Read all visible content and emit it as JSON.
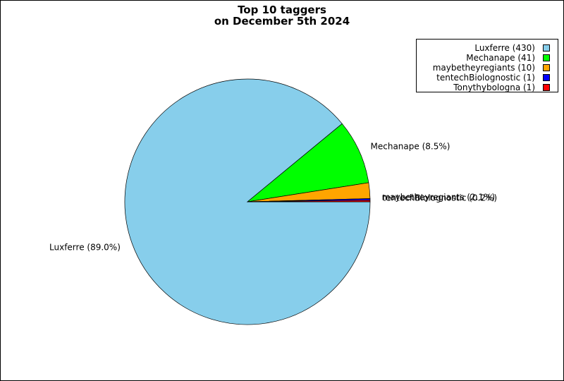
{
  "chart_data": {
    "type": "pie",
    "title": "Top 10 taggers",
    "subtitle": "on December 5th 2024",
    "slices": [
      {
        "name": "Luxferre",
        "value": 430,
        "percent": 89.0,
        "color": "#87CEEB",
        "legend_label": "Luxferre (430)",
        "slice_label": "Luxferre (89.0%)"
      },
      {
        "name": "Mechanape",
        "value": 41,
        "percent": 8.5,
        "color": "#00FF00",
        "legend_label": "Mechanape (41)",
        "slice_label": "Mechanape (8.5%)"
      },
      {
        "name": "maybetheyregiants",
        "value": 10,
        "percent": 2.1,
        "color": "#FFA500",
        "legend_label": "maybetheyregiants (10)",
        "slice_label": "maybetheyregiants (2.1%)"
      },
      {
        "name": "tentechBiolognostic",
        "value": 1,
        "percent": 0.2,
        "color": "#0000FF",
        "legend_label": "tentechBiolognostic (1)",
        "slice_label": "tentechBiolognostic (0.2%)"
      },
      {
        "name": "Tonythybologna",
        "value": 1,
        "percent": 0.2,
        "color": "#FF0000",
        "legend_label": "Tonythybologna (1)",
        "slice_label": ""
      }
    ],
    "start_angle_deg": 0,
    "direction": "clockwise",
    "legend_position": "top-right"
  }
}
